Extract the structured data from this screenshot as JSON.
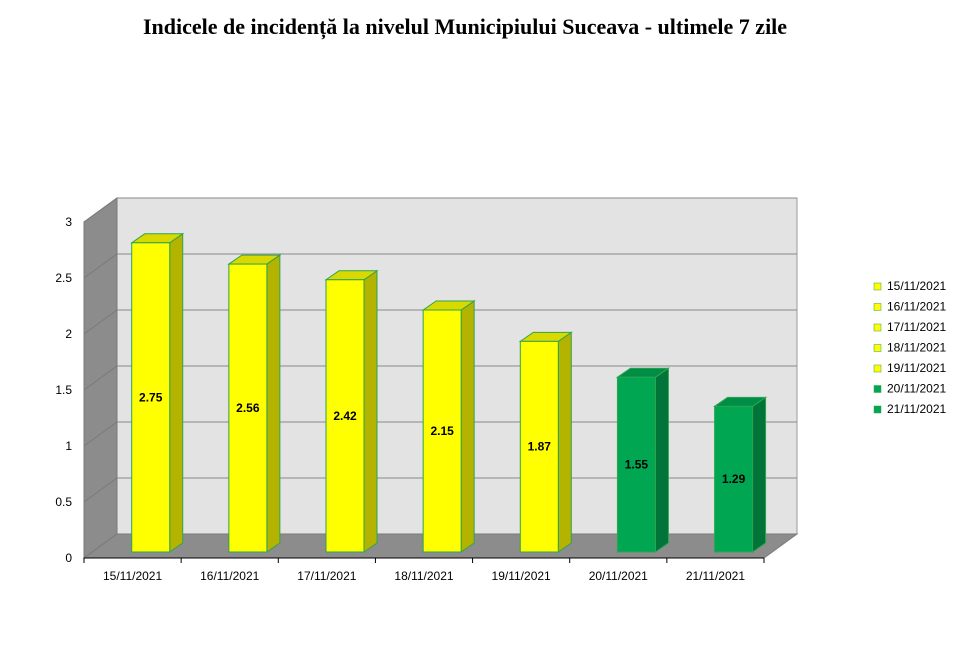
{
  "chart_data": {
    "type": "bar",
    "title": "Indicele de incidență la nivelul Municipiului Suceava - ultimele 7 zile",
    "categories": [
      "15/11/2021",
      "16/11/2021",
      "17/11/2021",
      "18/11/2021",
      "19/11/2021",
      "20/11/2021",
      "21/11/2021"
    ],
    "values": [
      2.75,
      2.56,
      2.42,
      2.15,
      1.87,
      1.55,
      1.29
    ],
    "value_labels": [
      "2.75",
      "2.56",
      "2.42",
      "2.15",
      "1.87",
      "1.55",
      "1.29"
    ],
    "bar_colors": [
      "#ffff00",
      "#ffff00",
      "#ffff00",
      "#ffff00",
      "#ffff00",
      "#00a651",
      "#00a651"
    ],
    "yticks": [
      "0",
      "0.5",
      "1",
      "1.5",
      "2",
      "2.5",
      "3"
    ],
    "ylim": [
      0,
      3
    ],
    "grid": true,
    "legend_position": "right",
    "legend": [
      {
        "label": "15/11/2021",
        "color": "#ffff00"
      },
      {
        "label": "16/11/2021",
        "color": "#ffff00"
      },
      {
        "label": "17/11/2021",
        "color": "#ffff00"
      },
      {
        "label": "18/11/2021",
        "color": "#ffff00"
      },
      {
        "label": "19/11/2021",
        "color": "#ffff00"
      },
      {
        "label": "20/11/2021",
        "color": "#00a651"
      },
      {
        "label": "21/11/2021",
        "color": "#00a651"
      }
    ]
  }
}
